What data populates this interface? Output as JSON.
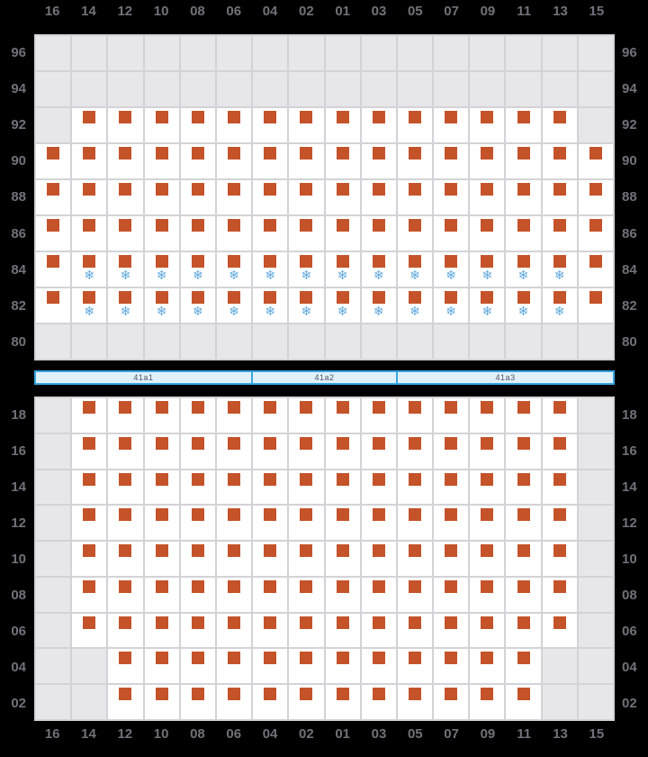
{
  "colors": {
    "background": "#000000",
    "grid_line": "#d3d3d7",
    "cell_empty": "#e7e7e9",
    "cell_free": "#ffffff",
    "berth_marker": "#c5532a",
    "snowflake": "#5fa8dc",
    "section_fill": "#e1f1fb",
    "section_border": "#39a5e1",
    "label_text": "#71717b"
  },
  "icons": {
    "snowflake_glyph": "❄",
    "berth_marker": "orange-square"
  },
  "cell_codes": {
    "E": "empty",
    "S": "berth",
    "A": "berth-with-snowflake"
  },
  "columns": [
    "16",
    "14",
    "12",
    "10",
    "08",
    "06",
    "04",
    "02",
    "01",
    "03",
    "05",
    "07",
    "09",
    "11",
    "13",
    "15"
  ],
  "upper_deck": {
    "rows": [
      {
        "label": "96",
        "cells": "EEEEEEEEEEEEEEEE"
      },
      {
        "label": "94",
        "cells": "EEEEEEEEEEEEEEEE"
      },
      {
        "label": "92",
        "cells": "ESSSSSSSSSSSSSSE"
      },
      {
        "label": "90",
        "cells": "SSSSSSSSSSSSSSSS"
      },
      {
        "label": "88",
        "cells": "SSSSSSSSSSSSSSSS"
      },
      {
        "label": "86",
        "cells": "SSSSSSSSSSSSSSSS"
      },
      {
        "label": "84",
        "cells": "SAAAAAAAAAAAAAAS"
      },
      {
        "label": "82",
        "cells": "SAAAAAAAAAAAAAAS"
      },
      {
        "label": "80",
        "cells": "EEEEEEEEEEEEEEEE"
      }
    ]
  },
  "sections": {
    "segments": [
      {
        "label": "41a1",
        "cols": 6
      },
      {
        "label": "41a2",
        "cols": 4
      },
      {
        "label": "41a3",
        "cols": 6
      }
    ]
  },
  "lower_deck": {
    "rows": [
      {
        "label": "18",
        "cells": "ESSSSSSSSSSSSSSE"
      },
      {
        "label": "16",
        "cells": "ESSSSSSSSSSSSSSE"
      },
      {
        "label": "14",
        "cells": "ESSSSSSSSSSSSSSE"
      },
      {
        "label": "12",
        "cells": "ESSSSSSSSSSSSSSE"
      },
      {
        "label": "10",
        "cells": "ESSSSSSSSSSSSSSE"
      },
      {
        "label": "08",
        "cells": "ESSSSSSSSSSSSSSE"
      },
      {
        "label": "06",
        "cells": "ESSSSSSSSSSSSSSE"
      },
      {
        "label": "04",
        "cells": "EESSSSSSSSSSSSEE"
      },
      {
        "label": "02",
        "cells": "EESSSSSSSSSSSSEE"
      }
    ]
  }
}
